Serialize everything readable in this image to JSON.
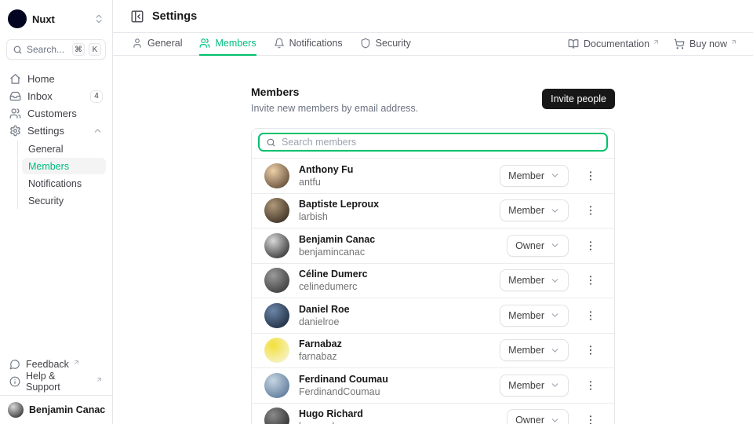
{
  "colors": {
    "primary": "#00bd7e",
    "primary_ring": "#00c16a",
    "logo_green": "#00DC82",
    "invite_bg": "#171717",
    "border": "#e5e7eb"
  },
  "sidebar": {
    "workspace": {
      "name": "Nuxt",
      "logo_icon": "nuxt-logo-icon",
      "selector_icon": "chevrons-up-down-icon"
    },
    "search": {
      "placeholder": "Search...",
      "icon": "search-icon",
      "shortcut_keys": [
        "⌘",
        "K"
      ]
    },
    "nav": [
      {
        "label": "Home",
        "icon": "home-icon"
      },
      {
        "label": "Inbox",
        "icon": "inbox-icon",
        "badge": "4"
      },
      {
        "label": "Customers",
        "icon": "customers-icon"
      },
      {
        "label": "Settings",
        "icon": "gear-icon",
        "trailing_icon": "chevron-up-icon"
      }
    ],
    "settings_children": [
      {
        "label": "General",
        "active": false
      },
      {
        "label": "Members",
        "active": true
      },
      {
        "label": "Notifications",
        "active": false
      },
      {
        "label": "Security",
        "active": false
      }
    ],
    "footer_links": [
      {
        "label": "Feedback",
        "icon": "feedback-icon",
        "external": true
      },
      {
        "label": "Help & Support",
        "icon": "help-icon",
        "external": true
      }
    ],
    "user": {
      "name": "Benjamin Canac",
      "selector_icon": "chevrons-up-down-icon",
      "avatar_colors": [
        "#d8d8d8",
        "#161616"
      ]
    }
  },
  "header": {
    "title": "Settings",
    "collapse_icon": "panel-left-close-icon",
    "tabs": [
      {
        "label": "General",
        "icon": "user-icon",
        "active": false
      },
      {
        "label": "Members",
        "icon": "customers-icon",
        "active": true
      },
      {
        "label": "Notifications",
        "icon": "bell-icon",
        "active": false
      },
      {
        "label": "Security",
        "icon": "shield-icon",
        "active": false
      }
    ],
    "links": [
      {
        "label": "Documentation",
        "icon": "book-icon",
        "external": true
      },
      {
        "label": "Buy now",
        "icon": "cart-icon",
        "external": true
      }
    ]
  },
  "main": {
    "section_title": "Members",
    "section_subtitle": "Invite new members by email address.",
    "invite_button": "Invite people",
    "search": {
      "placeholder": "Search members",
      "icon": "search-icon"
    },
    "members": [
      {
        "name": "Anthony Fu",
        "username": "antfu",
        "role": "Member",
        "avatar_colors": [
          "#ecd0a8",
          "#4a3424"
        ]
      },
      {
        "name": "Baptiste Leproux",
        "username": "larbish",
        "role": "Member",
        "avatar_colors": [
          "#b09878",
          "#241c14"
        ]
      },
      {
        "name": "Benjamin Canac",
        "username": "benjamincanac",
        "role": "Owner",
        "avatar_colors": [
          "#d8d8d8",
          "#161616"
        ]
      },
      {
        "name": "Céline Dumerc",
        "username": "celinedumerc",
        "role": "Member",
        "avatar_colors": [
          "#9a9a9a",
          "#2a2a2a"
        ]
      },
      {
        "name": "Daniel Roe",
        "username": "danielroe",
        "role": "Member",
        "avatar_colors": [
          "#6c86a8",
          "#101c2e"
        ]
      },
      {
        "name": "Farnabaz",
        "username": "farnabaz",
        "role": "Member",
        "avatar_colors": [
          "#f2e03a",
          "#f8f6e8"
        ]
      },
      {
        "name": "Ferdinand Coumau",
        "username": "FerdinandCoumau",
        "role": "Member",
        "avatar_colors": [
          "#c6d5e2",
          "#49688c"
        ]
      },
      {
        "name": "Hugo Richard",
        "username": "hugorcd",
        "role": "Owner",
        "avatar_colors": [
          "#8a8a8a",
          "#1a1a1a"
        ]
      }
    ]
  }
}
